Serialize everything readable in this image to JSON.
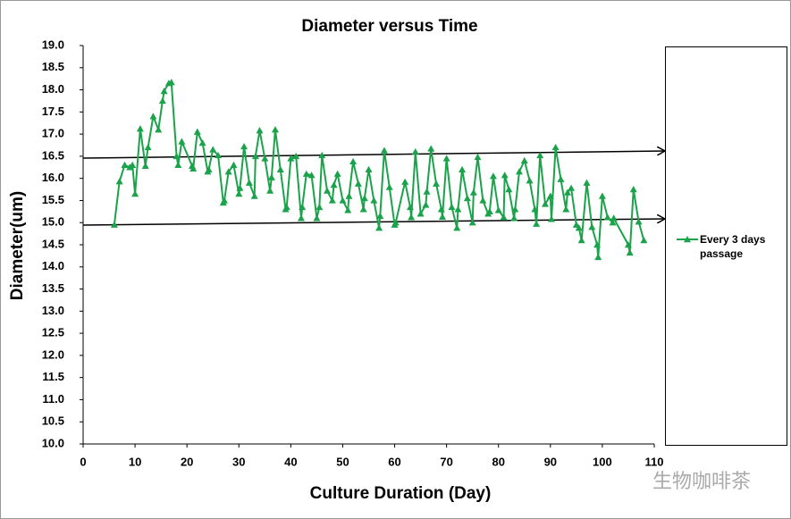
{
  "chart_data": {
    "type": "line",
    "title": "Diameter versus Time",
    "x_label": "Culture Duration (Day)",
    "y_label": "Diameter(um)",
    "xlim": [
      0,
      110
    ],
    "xticks": [
      0,
      10,
      20,
      30,
      40,
      50,
      60,
      70,
      80,
      90,
      100,
      110
    ],
    "ylim": [
      10,
      19
    ],
    "yticks": [
      {
        "value": 10,
        "label": "10.0"
      },
      10.5,
      {
        "value": 11,
        "label": "11.0"
      },
      11.5,
      {
        "value": 12,
        "label": "12.0"
      },
      12.5,
      {
        "value": 13,
        "label": "13.0"
      },
      13.5,
      {
        "value": 14,
        "label": "14.0"
      },
      14.5,
      {
        "value": 15,
        "label": "15.0"
      },
      15.5,
      {
        "value": 16,
        "label": "16.0"
      },
      16.5,
      {
        "value": 17,
        "label": "17.0"
      },
      17.5,
      {
        "value": 18,
        "label": "18.0"
      },
      18.5,
      {
        "value": 19,
        "label": "19.0"
      }
    ],
    "grid": false,
    "series": [
      {
        "name": "Every 3 days passage",
        "color": "#1aa34a",
        "x": [
          6,
          7,
          8,
          9,
          9.5,
          10,
          11,
          12,
          12.5,
          13.5,
          14.5,
          15.3,
          15.6,
          16.5,
          17,
          18,
          18.3,
          19,
          21,
          21.2,
          22,
          23,
          24,
          24.2,
          25,
          26,
          27,
          27.2,
          28,
          29,
          30,
          30.2,
          31,
          32,
          33,
          33.2,
          34,
          35,
          36,
          36.3,
          37,
          38,
          39,
          39.2,
          40,
          41,
          42,
          42.2,
          43,
          44,
          45,
          45.5,
          46,
          47,
          48,
          48.3,
          49,
          50,
          51,
          51.2,
          52,
          53,
          54,
          54.2,
          55,
          56,
          57,
          57.2,
          58,
          59,
          60,
          60.2,
          62,
          63,
          63.2,
          64,
          65,
          66,
          66.2,
          67,
          68,
          69,
          69.2,
          70,
          71,
          72,
          72.2,
          73,
          74,
          75,
          75.2,
          76,
          77,
          78,
          78.3,
          79,
          80,
          81,
          81.2,
          82,
          83,
          83.2,
          84,
          85,
          86,
          87,
          87.3,
          88,
          89,
          90,
          90.2,
          91,
          92,
          93,
          93.3,
          94,
          95,
          95.5,
          96,
          97,
          98,
          99,
          99.2,
          100,
          101,
          102,
          102.2,
          105,
          105.3,
          106,
          107,
          108
        ],
        "values": [
          14.95,
          15.93,
          16.3,
          16.25,
          16.3,
          15.65,
          17.12,
          16.28,
          16.7,
          17.4,
          17.1,
          17.75,
          17.97,
          18.15,
          18.17,
          16.5,
          16.3,
          16.83,
          16.28,
          16.22,
          17.05,
          16.8,
          16.15,
          16.2,
          16.65,
          16.52,
          15.45,
          15.5,
          16.15,
          16.3,
          15.65,
          15.78,
          16.72,
          15.9,
          15.6,
          16.5,
          17.08,
          16.45,
          15.72,
          16.02,
          17.1,
          16.2,
          15.3,
          15.35,
          16.45,
          16.5,
          15.1,
          15.35,
          16.1,
          16.07,
          15.1,
          15.35,
          16.52,
          15.72,
          15.5,
          15.85,
          16.1,
          15.5,
          15.28,
          15.6,
          16.38,
          15.88,
          15.3,
          15.55,
          16.2,
          15.5,
          14.88,
          15.15,
          16.63,
          15.8,
          14.95,
          15.0,
          15.92,
          15.35,
          15.12,
          16.6,
          15.2,
          15.4,
          15.7,
          16.67,
          15.88,
          15.3,
          15.13,
          16.45,
          15.35,
          14.88,
          15.3,
          16.2,
          15.55,
          15.0,
          15.68,
          16.48,
          15.5,
          15.2,
          15.25,
          16.05,
          15.28,
          15.12,
          16.07,
          15.75,
          15.1,
          15.3,
          16.15,
          16.4,
          15.95,
          15.3,
          14.97,
          16.52,
          15.42,
          15.6,
          15.08,
          16.7,
          15.98,
          15.3,
          15.68,
          15.78,
          14.95,
          14.88,
          14.6,
          15.9,
          14.9,
          14.5,
          14.22,
          15.6,
          15.12,
          15.0,
          15.1,
          14.5,
          14.32,
          15.75,
          15.02,
          14.6
        ]
      }
    ]
  },
  "watermark": "生物咖啡茶"
}
